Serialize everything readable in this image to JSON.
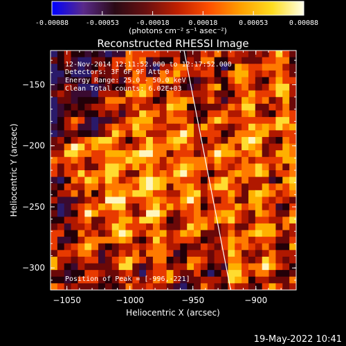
{
  "chart_data": {
    "type": "heatmap",
    "title": "Reconstructed RHESSI Image",
    "xlabel": "Heliocentric X (arcsec)",
    "ylabel": "Heliocentric Y (arcsec)",
    "xlim": [
      -1063,
      -868
    ],
    "ylim": [
      -318,
      -122
    ],
    "x_ticks": [
      -1050,
      -1000,
      -950,
      -900
    ],
    "y_ticks": [
      -300,
      -250,
      -200,
      -150
    ],
    "colorbar": {
      "min": -0.00088,
      "max": 0.00088,
      "ticks": [
        "-0.00088",
        "-0.00053",
        "-0.00018",
        "0.00018",
        "0.00053",
        "0.00088"
      ],
      "unit_label": "(photons cm⁻² s⁻¹ asec⁻²)",
      "colormap": [
        "#0000ff",
        "#5a2a8a",
        "#2a0a15",
        "#6a1010",
        "#c02000",
        "#ff5000",
        "#ffa000",
        "#ffdd20",
        "#ffffe8"
      ]
    },
    "limb_line": {
      "points": [
        [
          -957,
          -122
        ],
        [
          -920,
          -318
        ]
      ],
      "color": "#ffffff"
    },
    "peak": [
      -996,
      -221
    ],
    "annotations": [
      "12-Nov-2014 12:11:52.000 to 12:17:52.000",
      "Detectors: 3F 6F 9F Att 0",
      "Energy Range: 25.0 - 50.0 keV",
      "Clean     Total counts: 6.02E+03",
      "Position of Peak = [-996,-221]"
    ]
  },
  "footer": {
    "timestamp": "19-May-2022 10:41"
  }
}
